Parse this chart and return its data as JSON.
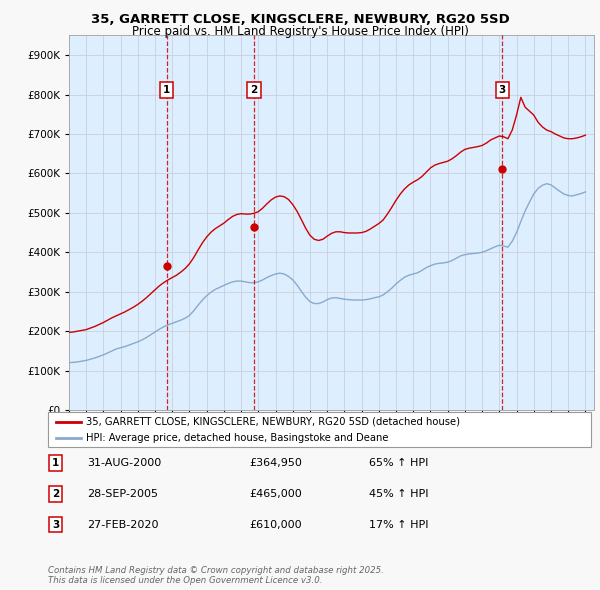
{
  "title_line1": "35, GARRETT CLOSE, KINGSCLERE, NEWBURY, RG20 5SD",
  "title_line2": "Price paid vs. HM Land Registry's House Price Index (HPI)",
  "legend_line1": "35, GARRETT CLOSE, KINGSCLERE, NEWBURY, RG20 5SD (detached house)",
  "legend_line2": "HPI: Average price, detached house, Basingstoke and Deane",
  "footer": "Contains HM Land Registry data © Crown copyright and database right 2025.\nThis data is licensed under the Open Government Licence v3.0.",
  "sale_color": "#cc0000",
  "hpi_color": "#88aacc",
  "background_color": "#ddeeff",
  "plot_bg": "#f8f8f8",
  "ylim": [
    0,
    950000
  ],
  "yticks": [
    0,
    100000,
    200000,
    300000,
    400000,
    500000,
    600000,
    700000,
    800000,
    900000
  ],
  "xlim_start": 1995.0,
  "xlim_end": 2025.5,
  "transactions": [
    {
      "year": 2000.67,
      "price": 364950,
      "label": "1"
    },
    {
      "year": 2005.75,
      "price": 465000,
      "label": "2"
    },
    {
      "year": 2020.17,
      "price": 610000,
      "label": "3"
    }
  ],
  "transaction_dates": [
    "31-AUG-2000",
    "28-SEP-2005",
    "27-FEB-2020"
  ],
  "transaction_prices": [
    "£364,950",
    "£465,000",
    "£610,000"
  ],
  "transaction_hpi": [
    "65% ↑ HPI",
    "45% ↑ HPI",
    "17% ↑ HPI"
  ],
  "hpi_data_x": [
    1995.0,
    1995.25,
    1995.5,
    1995.75,
    1996.0,
    1996.25,
    1996.5,
    1996.75,
    1997.0,
    1997.25,
    1997.5,
    1997.75,
    1998.0,
    1998.25,
    1998.5,
    1998.75,
    1999.0,
    1999.25,
    1999.5,
    1999.75,
    2000.0,
    2000.25,
    2000.5,
    2000.75,
    2001.0,
    2001.25,
    2001.5,
    2001.75,
    2002.0,
    2002.25,
    2002.5,
    2002.75,
    2003.0,
    2003.25,
    2003.5,
    2003.75,
    2004.0,
    2004.25,
    2004.5,
    2004.75,
    2005.0,
    2005.25,
    2005.5,
    2005.75,
    2006.0,
    2006.25,
    2006.5,
    2006.75,
    2007.0,
    2007.25,
    2007.5,
    2007.75,
    2008.0,
    2008.25,
    2008.5,
    2008.75,
    2009.0,
    2009.25,
    2009.5,
    2009.75,
    2010.0,
    2010.25,
    2010.5,
    2010.75,
    2011.0,
    2011.25,
    2011.5,
    2011.75,
    2012.0,
    2012.25,
    2012.5,
    2012.75,
    2013.0,
    2013.25,
    2013.5,
    2013.75,
    2014.0,
    2014.25,
    2014.5,
    2014.75,
    2015.0,
    2015.25,
    2015.5,
    2015.75,
    2016.0,
    2016.25,
    2016.5,
    2016.75,
    2017.0,
    2017.25,
    2017.5,
    2017.75,
    2018.0,
    2018.25,
    2018.5,
    2018.75,
    2019.0,
    2019.25,
    2019.5,
    2019.75,
    2020.0,
    2020.25,
    2020.5,
    2020.75,
    2021.0,
    2021.25,
    2021.5,
    2021.75,
    2022.0,
    2022.25,
    2022.5,
    2022.75,
    2023.0,
    2023.25,
    2023.5,
    2023.75,
    2024.0,
    2024.25,
    2024.5,
    2024.75,
    2025.0
  ],
  "hpi_data_y": [
    120000,
    121000,
    122000,
    124000,
    126000,
    129000,
    132000,
    136000,
    140000,
    145000,
    150000,
    155000,
    158000,
    161000,
    165000,
    169000,
    173000,
    178000,
    184000,
    191000,
    198000,
    205000,
    211000,
    216000,
    220000,
    224000,
    228000,
    233000,
    240000,
    252000,
    266000,
    279000,
    290000,
    299000,
    306000,
    311000,
    316000,
    321000,
    325000,
    327000,
    327000,
    325000,
    323000,
    323000,
    325000,
    330000,
    336000,
    341000,
    345000,
    347000,
    345000,
    339000,
    330000,
    317000,
    301000,
    286000,
    275000,
    270000,
    270000,
    274000,
    280000,
    284000,
    285000,
    283000,
    281000,
    280000,
    279000,
    279000,
    279000,
    280000,
    282000,
    285000,
    287000,
    292000,
    300000,
    309000,
    320000,
    329000,
    337000,
    342000,
    345000,
    348000,
    354000,
    361000,
    366000,
    370000,
    372000,
    373000,
    375000,
    379000,
    385000,
    391000,
    394000,
    396000,
    397000,
    398000,
    400000,
    404000,
    409000,
    414000,
    418000,
    416000,
    413000,
    428000,
    450000,
    478000,
    505000,
    527000,
    548000,
    562000,
    570000,
    574000,
    571000,
    563000,
    555000,
    548000,
    544000,
    543000,
    546000,
    549000,
    553000
  ],
  "price_data_x": [
    1995.0,
    1995.25,
    1995.5,
    1995.75,
    1996.0,
    1996.25,
    1996.5,
    1996.75,
    1997.0,
    1997.25,
    1997.5,
    1997.75,
    1998.0,
    1998.25,
    1998.5,
    1998.75,
    1999.0,
    1999.25,
    1999.5,
    1999.75,
    2000.0,
    2000.25,
    2000.5,
    2000.75,
    2001.0,
    2001.25,
    2001.5,
    2001.75,
    2002.0,
    2002.25,
    2002.5,
    2002.75,
    2003.0,
    2003.25,
    2003.5,
    2003.75,
    2004.0,
    2004.25,
    2004.5,
    2004.75,
    2005.0,
    2005.25,
    2005.5,
    2005.75,
    2006.0,
    2006.25,
    2006.5,
    2006.75,
    2007.0,
    2007.25,
    2007.5,
    2007.75,
    2008.0,
    2008.25,
    2008.5,
    2008.75,
    2009.0,
    2009.25,
    2009.5,
    2009.75,
    2010.0,
    2010.25,
    2010.5,
    2010.75,
    2011.0,
    2011.25,
    2011.5,
    2011.75,
    2012.0,
    2012.25,
    2012.5,
    2012.75,
    2013.0,
    2013.25,
    2013.5,
    2013.75,
    2014.0,
    2014.25,
    2014.5,
    2014.75,
    2015.0,
    2015.25,
    2015.5,
    2015.75,
    2016.0,
    2016.25,
    2016.5,
    2016.75,
    2017.0,
    2017.25,
    2017.5,
    2017.75,
    2018.0,
    2018.25,
    2018.5,
    2018.75,
    2019.0,
    2019.25,
    2019.5,
    2019.75,
    2020.0,
    2020.25,
    2020.5,
    2020.75,
    2021.0,
    2021.25,
    2021.5,
    2021.75,
    2022.0,
    2022.25,
    2022.5,
    2022.75,
    2023.0,
    2023.25,
    2023.5,
    2023.75,
    2024.0,
    2024.25,
    2024.5,
    2024.75,
    2025.0
  ],
  "price_data_y": [
    197000,
    198000,
    200000,
    202000,
    204000,
    208000,
    212000,
    217000,
    222000,
    228000,
    234000,
    239000,
    244000,
    249000,
    255000,
    261000,
    268000,
    276000,
    285000,
    295000,
    305000,
    315000,
    323000,
    330000,
    336000,
    342000,
    350000,
    359000,
    371000,
    387000,
    406000,
    424000,
    439000,
    451000,
    460000,
    467000,
    474000,
    483000,
    491000,
    496000,
    498000,
    497000,
    497000,
    499000,
    503000,
    512000,
    523000,
    533000,
    540000,
    543000,
    541000,
    534000,
    521000,
    504000,
    483000,
    461000,
    443000,
    433000,
    430000,
    433000,
    441000,
    448000,
    452000,
    452000,
    450000,
    449000,
    449000,
    449000,
    450000,
    453000,
    459000,
    466000,
    473000,
    482000,
    497000,
    514000,
    532000,
    548000,
    561000,
    571000,
    578000,
    584000,
    592000,
    603000,
    614000,
    621000,
    625000,
    628000,
    631000,
    637000,
    645000,
    654000,
    661000,
    664000,
    666000,
    668000,
    671000,
    677000,
    685000,
    690000,
    695000,
    693000,
    688000,
    710000,
    748000,
    793000,
    768000,
    758000,
    748000,
    730000,
    718000,
    710000,
    706000,
    700000,
    695000,
    690000,
    688000,
    688000,
    690000,
    693000,
    697000
  ]
}
